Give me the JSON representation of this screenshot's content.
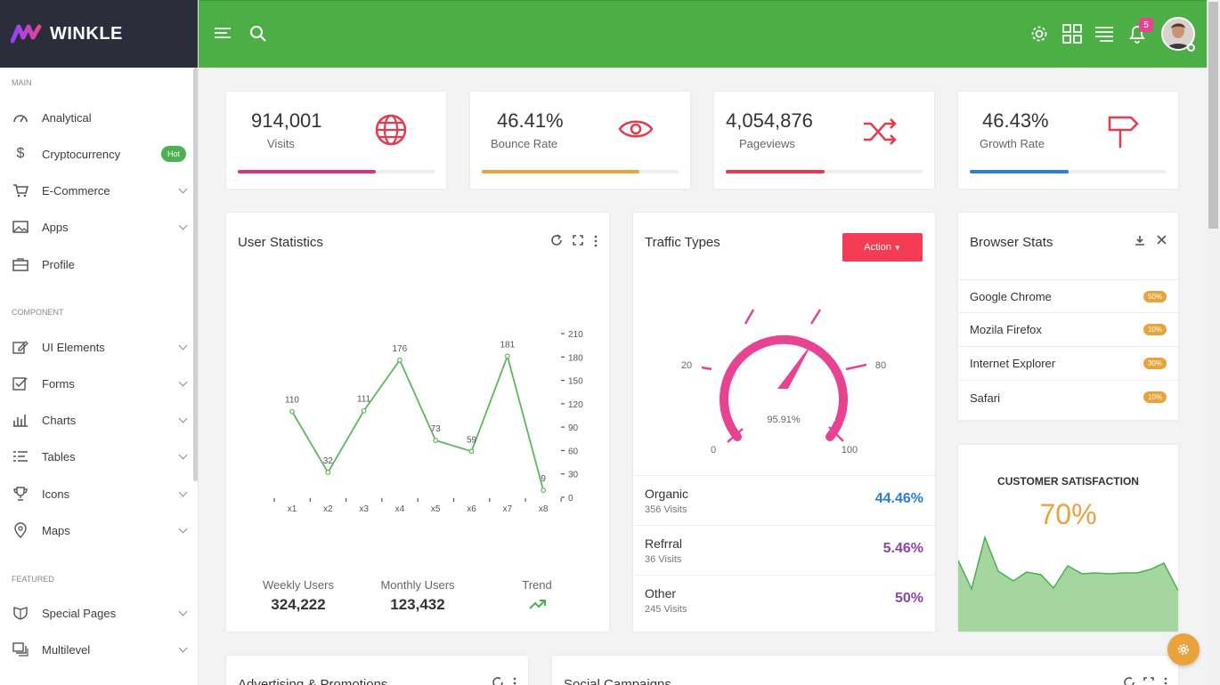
{
  "brand": {
    "name": "WINKLE"
  },
  "sidebar": {
    "sections": {
      "main": "MAIN",
      "component": "COMPONENT",
      "featured": "FEATURED"
    },
    "items": [
      {
        "label": "Analytical",
        "icon": "dashboard-icon"
      },
      {
        "label": "Cryptocurrency",
        "icon": "dollar-icon",
        "badge": "Hot"
      },
      {
        "label": "E-Commerce",
        "icon": "cart-icon"
      },
      {
        "label": "Apps",
        "icon": "image-icon"
      },
      {
        "label": "Profile",
        "icon": "briefcase-icon"
      },
      {
        "label": "UI Elements",
        "icon": "edit-icon"
      },
      {
        "label": "Forms",
        "icon": "checkbox-icon"
      },
      {
        "label": "Charts",
        "icon": "bar-chart-icon"
      },
      {
        "label": "Tables",
        "icon": "table-icon"
      },
      {
        "label": "Icons",
        "icon": "trophy-icon"
      },
      {
        "label": "Maps",
        "icon": "map-pin-icon"
      },
      {
        "label": "Special Pages",
        "icon": "shield-icon"
      },
      {
        "label": "Multilevel",
        "icon": "layers-icon"
      }
    ]
  },
  "topbar": {
    "notification_count": "5"
  },
  "stats": [
    {
      "value": "914,001",
      "label": "Visits",
      "progress": 0.7,
      "color": "#d63384"
    },
    {
      "value": "46.41%",
      "label": "Bounce Rate",
      "progress": 0.8,
      "color": "#e8a33c"
    },
    {
      "value": "4,054,876",
      "label": "Pageviews",
      "progress": 0.5,
      "color": "#e83a4e"
    },
    {
      "value": "46.43%",
      "label": "Growth Rate",
      "progress": 0.5,
      "color": "#2a7de1"
    }
  ],
  "user_statistics": {
    "title": "User Statistics",
    "footer": [
      {
        "label": "Weekly Users",
        "value": "324,222"
      },
      {
        "label": "Monthly Users",
        "value": "123,432"
      },
      {
        "label": "Trend",
        "value": ""
      }
    ]
  },
  "chart_data": {
    "type": "line",
    "categories": [
      "x1",
      "x2",
      "x3",
      "x4",
      "x5",
      "x6",
      "x7",
      "x8"
    ],
    "values": [
      110,
      32,
      111,
      176,
      73,
      59,
      181,
      9
    ],
    "yticks": [
      "0",
      "30",
      "60",
      "90",
      "120",
      "150",
      "180",
      "210"
    ],
    "ylim": [
      0,
      210
    ],
    "title": "",
    "xlabel": "",
    "ylabel": ""
  },
  "traffic_types": {
    "title": "Traffic Types",
    "action_label": "Action",
    "gauge": {
      "value": "95.91%",
      "labels": [
        "0",
        "20",
        "80",
        "100"
      ]
    },
    "rows": [
      {
        "name": "Organic",
        "sub": "356 Visits",
        "pct": "44.46%",
        "color": "#2a7de1"
      },
      {
        "name": "Refrral",
        "sub": "36 Visits",
        "pct": "5.46%",
        "color": "#8e44ad"
      },
      {
        "name": "Other",
        "sub": "245 Visits",
        "pct": "50%",
        "color": "#8e44ad"
      }
    ]
  },
  "browser_stats": {
    "title": "Browser Stats",
    "rows": [
      {
        "name": "Google Chrome",
        "pct": "50%"
      },
      {
        "name": "Mozila Firefox",
        "pct": "10%"
      },
      {
        "name": "Internet Explorer",
        "pct": "30%"
      },
      {
        "name": "Safari",
        "pct": "10%"
      }
    ]
  },
  "satisfaction": {
    "title": "CUSTOMER SATISFACTION",
    "value": "70%"
  },
  "bottom": {
    "card1_title": "Advertising & Promotions",
    "card2_title": "Social Campaigns"
  }
}
